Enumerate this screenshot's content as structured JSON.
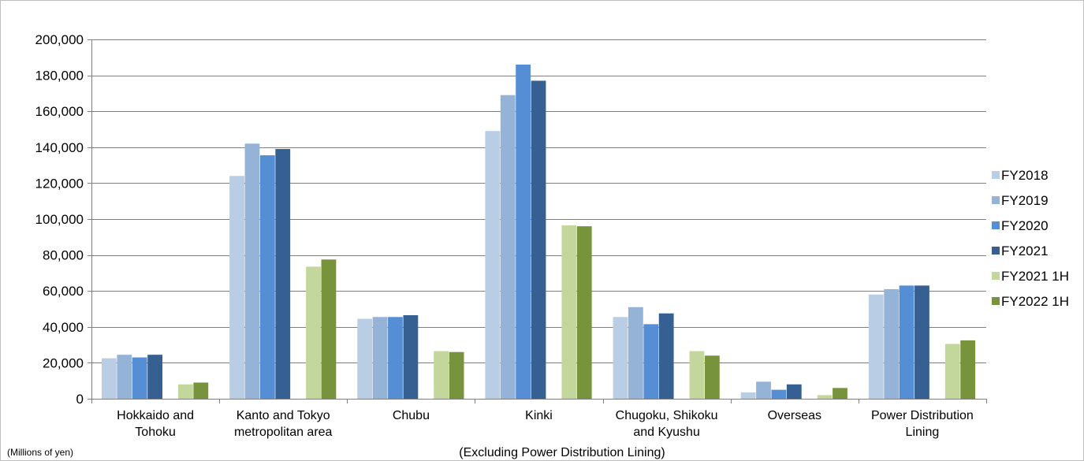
{
  "chart_data": {
    "type": "bar",
    "title": "",
    "xlabel": "",
    "ylabel": "",
    "unit_note": "(Millions of yen)",
    "region_note": "(Excluding Power Distribution Lining)",
    "categories": [
      [
        "Hokkaido and",
        "Tohoku"
      ],
      [
        "Kanto and Tokyo",
        "metropolitan area"
      ],
      [
        "Chubu"
      ],
      [
        "Kinki"
      ],
      [
        "Chugoku, Shikoku",
        "and Kyushu"
      ],
      [
        "Overseas"
      ],
      [
        "Power Distribution",
        "Lining"
      ]
    ],
    "ylim": [
      0,
      200000
    ],
    "yticks": [
      0,
      20000,
      40000,
      60000,
      80000,
      100000,
      120000,
      140000,
      160000,
      180000,
      200000
    ],
    "ytick_labels": [
      "0",
      "20,000",
      "40,000",
      "60,000",
      "80,000",
      "100,000",
      "120,000",
      "140,000",
      "160,000",
      "180,000",
      "200,000"
    ],
    "grid": true,
    "legend_position": "right",
    "series": [
      {
        "name": "FY2018",
        "color": "#b9cde5",
        "values": [
          22500,
          124000,
          44500,
          149000,
          45500,
          3500,
          58000
        ]
      },
      {
        "name": "FY2019",
        "color": "#95b3d7",
        "values": [
          24500,
          142000,
          45500,
          169000,
          51000,
          9500,
          61000
        ]
      },
      {
        "name": "FY2020",
        "color": "#558ed5",
        "values": [
          23000,
          135500,
          45500,
          186000,
          41500,
          5000,
          63000
        ]
      },
      {
        "name": "FY2021",
        "color": "#376092",
        "values": [
          24500,
          139000,
          46500,
          177000,
          47500,
          8000,
          63000
        ]
      },
      {
        "name": "FY2021 1H",
        "color": "#c3d69b",
        "values": [
          8000,
          73500,
          26500,
          96500,
          26500,
          2000,
          30500
        ]
      },
      {
        "name": "FY2022 1H",
        "color": "#77933c",
        "values": [
          9000,
          77500,
          26000,
          96000,
          24000,
          6000,
          32500
        ]
      }
    ],
    "bar_slots": [
      0,
      1,
      2,
      3,
      5,
      6
    ]
  }
}
